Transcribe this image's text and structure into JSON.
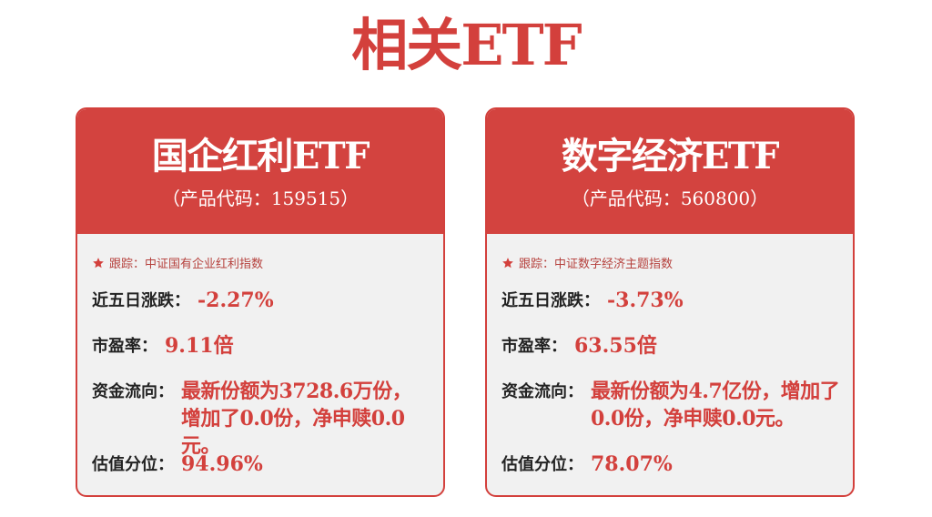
{
  "page_title": "相关ETF",
  "cards": [
    {
      "name": "国企红利ETF",
      "code_prefix": "（产品代码：",
      "code": "159515",
      "code_suffix": "）",
      "track_label": "跟踪：",
      "track_index": "中证国有企业红利指数",
      "change_label": "近五日涨跌：",
      "change_value": "-2.27%",
      "pe_label": "市盈率：",
      "pe_value": "9.11倍",
      "flow_label": "资金流向：",
      "flow_value": "最新份额为3728.6万份，增加了0.0份，净申赎0.0元。",
      "valuation_label": "估值分位：",
      "valuation_value": "94.96%"
    },
    {
      "name": "数字经济ETF",
      "code_prefix": "（产品代码：",
      "code": "560800",
      "code_suffix": "）",
      "track_label": "跟踪：",
      "track_index": "中证数字经济主题指数",
      "change_label": "近五日涨跌：",
      "change_value": "-3.73%",
      "pe_label": "市盈率：",
      "pe_value": "63.55倍",
      "flow_label": "资金流向：",
      "flow_value": "最新份额为4.7亿份，增加了0.0份，净申赎0.0元。",
      "valuation_label": "估值分位：",
      "valuation_value": "78.07%"
    }
  ],
  "colors": {
    "brand_red": "#d3403c",
    "card_bg": "#f1f1f1",
    "label": "#222222"
  },
  "icons": {
    "track": "star-icon"
  }
}
